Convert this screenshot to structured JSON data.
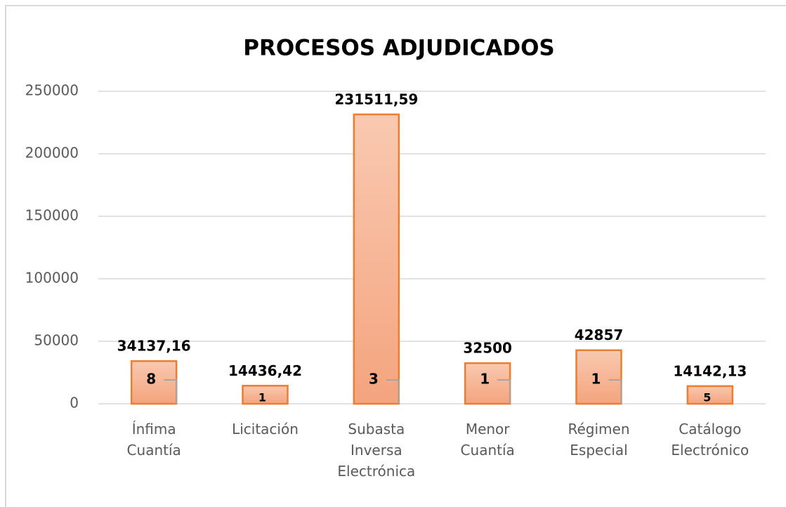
{
  "chart_data": {
    "type": "bar",
    "title": "PROCESOS ADJUDICADOS",
    "categories": [
      "Ínfima Cuantía",
      "Licitación",
      "Subasta Inversa Electrónica",
      "Menor Cuantía",
      "Régimen Especial",
      "Catálogo Electrónico"
    ],
    "series": [
      {
        "color": "#ed7d31",
        "values": [
          34137.16,
          14436.42,
          231511.59,
          32500,
          42857,
          14142.13
        ],
        "value_labels": [
          "34137,16",
          "14436,42",
          "231511,59",
          "32500",
          "42857",
          "14142,13"
        ]
      },
      {
        "color": "#a5a5a5",
        "values": [
          8,
          1,
          3,
          1,
          1,
          5
        ]
      }
    ],
    "ylim": [
      0,
      250000
    ],
    "yticks": [
      0,
      50000,
      100000,
      150000,
      200000,
      250000
    ],
    "grid": true
  }
}
